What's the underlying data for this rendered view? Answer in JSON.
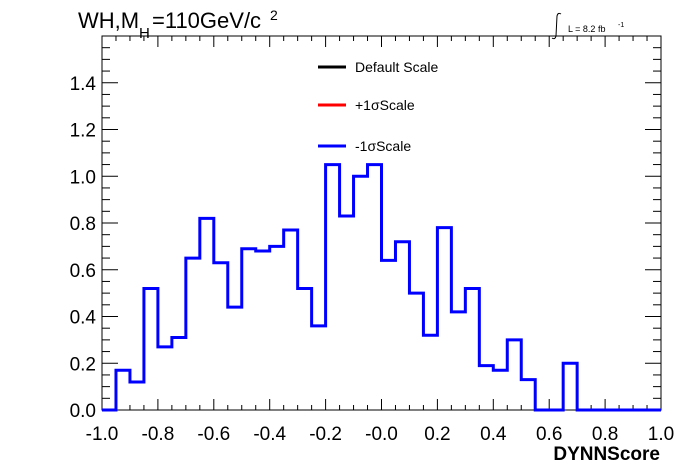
{
  "chart_data": {
    "type": "histogram",
    "title_main": "WH,M",
    "title_sub": "H",
    "title_rest": "=110GeV/c",
    "title_sup": "2",
    "lumi_text": "L = 8.2 fb",
    "lumi_sup": "-1",
    "xlabel": "DYNNScore",
    "ylabel": "",
    "xlim": [
      -1.0,
      1.0
    ],
    "ylim": [
      0.0,
      1.6
    ],
    "x_ticks": [
      "-1.0",
      "-0.8",
      "-0.6",
      "-0.4",
      "-0.2",
      "-0.0",
      "0.2",
      "0.4",
      "0.6",
      "0.8",
      "1.0"
    ],
    "y_ticks": [
      "0.0",
      "0.2",
      "0.4",
      "0.6",
      "0.8",
      "1.0",
      "1.2",
      "1.4"
    ],
    "bin_edges": [
      -1.0,
      -0.95,
      -0.9,
      -0.85,
      -0.8,
      -0.75,
      -0.7,
      -0.65,
      -0.6,
      -0.55,
      -0.5,
      -0.45,
      -0.4,
      -0.35,
      -0.3,
      -0.25,
      -0.2,
      -0.15,
      -0.1,
      -0.05,
      0.0,
      0.05,
      0.1,
      0.15,
      0.2,
      0.25,
      0.3,
      0.35,
      0.4,
      0.45,
      0.5,
      0.55,
      0.6,
      0.65,
      0.7,
      0.75,
      0.8,
      0.85,
      0.9,
      0.95,
      1.0
    ],
    "legend": [
      {
        "label": "Default Scale",
        "color": "#000000"
      },
      {
        "label": "+1σScale",
        "color": "#ff0000"
      },
      {
        "label": "-1σScale",
        "color": "#0000ff"
      }
    ],
    "series": [
      {
        "name": "-1σScale",
        "color": "#0000ff",
        "values": [
          0.0,
          0.17,
          0.12,
          0.52,
          0.27,
          0.31,
          0.65,
          0.82,
          0.63,
          0.44,
          0.69,
          0.68,
          0.7,
          0.77,
          0.52,
          0.36,
          1.05,
          0.83,
          1.0,
          1.05,
          0.64,
          0.72,
          0.5,
          0.32,
          0.78,
          0.42,
          0.52,
          0.19,
          0.17,
          0.3,
          0.13,
          0.0,
          0.0,
          0.2,
          0.0,
          0.0,
          0.0,
          0.0,
          0.0,
          0.0
        ]
      }
    ]
  }
}
